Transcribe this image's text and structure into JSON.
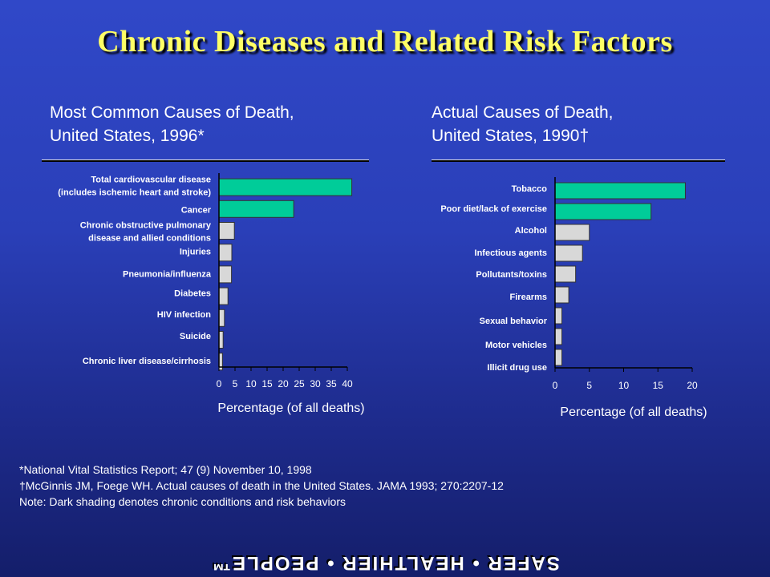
{
  "title": "Chronic Diseases and Related Risk Factors",
  "left_subtitle": [
    "Most Common Causes of Death,",
    "United States, 1996*"
  ],
  "right_subtitle": [
    "Actual Causes of Death,",
    "United States, 1990†"
  ],
  "colors": {
    "chronic": "#00cc99",
    "other": "#d8d8d8",
    "title": "#ffff66"
  },
  "notes": [
    "*National Vital Statistics Report; 47 (9) November 10, 1998",
    "†McGinnis JM, Foege WH. Actual causes of death in the United States. JAMA 1993; 270:2207-12",
    "Note: Dark shading denotes chronic conditions and risk behaviors"
  ],
  "footer": "SAFER • HEALTHIER • PEOPLE™",
  "chart_data": [
    {
      "type": "bar",
      "orientation": "horizontal",
      "title": "Most Common Causes of Death, United States, 1996*",
      "xlabel": "Percentage (of all deaths)",
      "xlim": [
        0,
        40
      ],
      "xticks": [
        0,
        5,
        10,
        15,
        20,
        25,
        30,
        35,
        40
      ],
      "categories": [
        "Total cardiovascular disease (includes ischemic heart and stroke)",
        "Cancer",
        "Chronic obstructive pulmonary disease and allied conditions",
        "Injuries",
        "Pneumonia/influenza",
        "Diabetes",
        "HIV infection",
        "Suicide",
        "Chronic liver disease/cirrhosis"
      ],
      "label_lines": [
        [
          "Total cardiovascular disease",
          "(includes ischemic heart and stroke)"
        ],
        [
          "Cancer"
        ],
        [
          "Chronic obstructive pulmonary",
          "disease and allied conditions"
        ],
        [
          "Injuries"
        ],
        [
          "Pneumonia/influenza"
        ],
        [
          "Diabetes"
        ],
        [
          "HIV infection"
        ],
        [
          "Suicide"
        ],
        [
          "Chronic liver disease/cirrhosis"
        ]
      ],
      "values": [
        41.4,
        23.3,
        4.8,
        4.0,
        3.9,
        2.8,
        1.7,
        1.3,
        1.1
      ],
      "chronic": [
        true,
        true,
        false,
        false,
        false,
        false,
        false,
        false,
        false
      ]
    },
    {
      "type": "bar",
      "orientation": "horizontal",
      "title": "Actual Causes of Death, United States, 1990†",
      "xlabel": "Percentage (of all deaths)",
      "xlim": [
        0,
        20
      ],
      "xticks": [
        0,
        5,
        10,
        15,
        20
      ],
      "categories": [
        "Tobacco",
        "Poor diet/lack of exercise",
        "Alcohol",
        "Infectious agents",
        "Pollutants/toxins",
        "Firearms",
        "Sexual behavior",
        "Motor vehicles",
        "Illicit drug use"
      ],
      "label_lines": [
        [
          "Tobacco"
        ],
        [
          "Poor diet/lack of exercise"
        ],
        [
          "Alcohol"
        ],
        [
          "Infectious agents"
        ],
        [
          "Pollutants/toxins"
        ],
        [
          "Firearms"
        ],
        [
          "Sexual behavior"
        ],
        [
          "Motor vehicles"
        ],
        [
          "Illicit drug use"
        ]
      ],
      "values": [
        19,
        14,
        5,
        4,
        3,
        2,
        1,
        1,
        1
      ],
      "chronic": [
        true,
        true,
        false,
        false,
        false,
        false,
        false,
        false,
        false
      ]
    }
  ]
}
